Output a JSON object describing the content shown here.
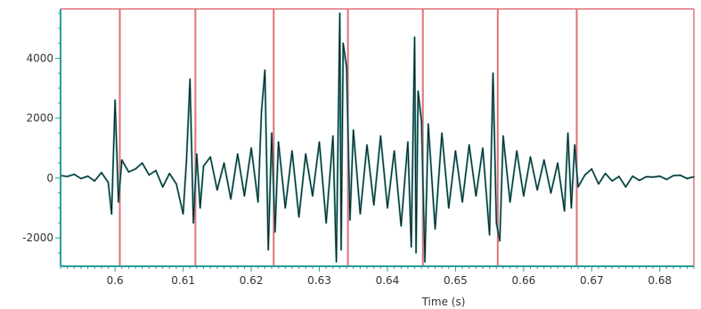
{
  "chart_data": {
    "type": "line",
    "title": "",
    "xlabel": "Time (s)",
    "ylabel": "",
    "xlim": [
      0.592,
      0.685
    ],
    "ylim": [
      -2950,
      5650
    ],
    "x_ticks": [
      {
        "value": 0.6,
        "label": "0.6"
      },
      {
        "value": 0.61,
        "label": "0.61"
      },
      {
        "value": 0.62,
        "label": "0.62"
      },
      {
        "value": 0.63,
        "label": "0.63"
      },
      {
        "value": 0.64,
        "label": "0.64"
      },
      {
        "value": 0.65,
        "label": "0.65"
      },
      {
        "value": 0.66,
        "label": "0.66"
      },
      {
        "value": 0.67,
        "label": "0.67"
      },
      {
        "value": 0.68,
        "label": "0.68"
      }
    ],
    "y_ticks": [
      {
        "value": -2000,
        "label": "-2000"
      },
      {
        "value": 0,
        "label": "0"
      },
      {
        "value": 2000,
        "label": "2000"
      },
      {
        "value": 4000,
        "label": "4000"
      }
    ],
    "grid": false,
    "markers_x": [
      0.6007,
      0.6118,
      0.6233,
      0.6342,
      0.6452,
      0.6562,
      0.6678
    ],
    "series": [
      {
        "color_primary": "#1a1a1a",
        "color_secondary": "#2a9d9a",
        "x": [
          0.592,
          0.593,
          0.594,
          0.595,
          0.596,
          0.597,
          0.598,
          0.599,
          0.5995,
          0.6,
          0.6005,
          0.601,
          0.602,
          0.603,
          0.604,
          0.605,
          0.606,
          0.607,
          0.608,
          0.609,
          0.61,
          0.6105,
          0.611,
          0.6115,
          0.612,
          0.6125,
          0.613,
          0.614,
          0.615,
          0.616,
          0.617,
          0.618,
          0.619,
          0.62,
          0.621,
          0.6215,
          0.622,
          0.6225,
          0.623,
          0.6235,
          0.624,
          0.625,
          0.626,
          0.627,
          0.628,
          0.629,
          0.63,
          0.631,
          0.632,
          0.6325,
          0.633,
          0.6332,
          0.6335,
          0.634,
          0.6345,
          0.635,
          0.636,
          0.637,
          0.638,
          0.639,
          0.64,
          0.641,
          0.642,
          0.643,
          0.6435,
          0.644,
          0.6442,
          0.6445,
          0.645,
          0.6455,
          0.646,
          0.647,
          0.648,
          0.649,
          0.65,
          0.651,
          0.652,
          0.653,
          0.654,
          0.655,
          0.6555,
          0.656,
          0.6565,
          0.657,
          0.658,
          0.659,
          0.66,
          0.661,
          0.662,
          0.663,
          0.664,
          0.665,
          0.666,
          0.6665,
          0.667,
          0.6675,
          0.668,
          0.669,
          0.67,
          0.671,
          0.672,
          0.673,
          0.674,
          0.675,
          0.676,
          0.677,
          0.678,
          0.679,
          0.68,
          0.681,
          0.682,
          0.683,
          0.684,
          0.685
        ],
        "y": [
          80,
          50,
          120,
          -20,
          60,
          -100,
          180,
          -150,
          -1200,
          2600,
          -800,
          600,
          200,
          300,
          500,
          100,
          250,
          -300,
          150,
          -200,
          -1200,
          600,
          3300,
          -1500,
          800,
          -1000,
          400,
          700,
          -400,
          500,
          -700,
          800,
          -600,
          1000,
          -800,
          2200,
          3600,
          -2400,
          1500,
          -1800,
          1200,
          -1000,
          900,
          -1300,
          800,
          -600,
          1200,
          -1500,
          1400,
          -2800,
          5500,
          -2400,
          4500,
          3700,
          -1400,
          1600,
          -1200,
          1100,
          -900,
          1400,
          -1000,
          900,
          -1600,
          1200,
          -2300,
          4700,
          -2500,
          2900,
          1900,
          -2800,
          1800,
          -1700,
          1500,
          -1000,
          900,
          -800,
          1100,
          -600,
          1000,
          -1900,
          3500,
          -1500,
          -2100,
          1400,
          -800,
          900,
          -600,
          700,
          -400,
          600,
          -500,
          500,
          -1100,
          1500,
          -1000,
          1100,
          -300,
          100,
          300,
          -200,
          150,
          -100,
          50,
          -300,
          60,
          -80,
          40,
          30,
          60,
          -50,
          80,
          90,
          -20,
          40
        ]
      }
    ]
  }
}
